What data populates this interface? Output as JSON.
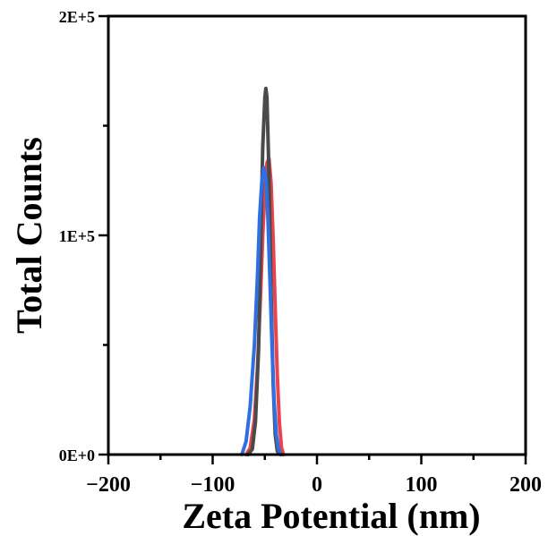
{
  "chart_data": {
    "type": "line",
    "title": "",
    "xlabel": "Zeta Potential (nm)",
    "ylabel": "Total Counts",
    "xlim": [
      -200,
      200
    ],
    "ylim": [
      0,
      200000
    ],
    "x_ticks": [
      -200,
      -100,
      0,
      100,
      200
    ],
    "x_tick_labels": [
      "−200",
      "−100",
      "0",
      "100",
      "200"
    ],
    "y_ticks": [
      0,
      100000,
      200000
    ],
    "y_tick_labels": [
      "0E+0",
      "1E+5",
      "2E+5"
    ],
    "grid": false,
    "legend": "none",
    "series": [
      {
        "color": "#e8434f",
        "x": [
          -68,
          -64,
          -60,
          -57,
          -54,
          -52,
          -50,
          -48,
          -46,
          -44,
          -42,
          -40,
          -38,
          -36,
          -34,
          -32
        ],
        "y": [
          0,
          3000,
          16000,
          40000,
          74000,
          100000,
          120000,
          133000,
          135000,
          124000,
          98000,
          66000,
          36000,
          14000,
          3000,
          0
        ]
      },
      {
        "color": "#4a4a4a",
        "x": [
          -66,
          -62,
          -59,
          -56,
          -54,
          -52,
          -50,
          -49,
          -48,
          -46,
          -44,
          -42,
          -40,
          -38,
          -35
        ],
        "y": [
          0,
          2500,
          15000,
          48000,
          95000,
          140000,
          163000,
          167000,
          163000,
          128000,
          75000,
          32000,
          9000,
          1500,
          0
        ]
      },
      {
        "color": "#2f6fe0",
        "x": [
          -72,
          -68,
          -64,
          -60,
          -57,
          -55,
          -53,
          -51,
          -49,
          -47,
          -45,
          -43,
          -41,
          -39,
          -37,
          -35,
          -33
        ],
        "y": [
          0,
          6000,
          22000,
          50000,
          82000,
          108000,
          124000,
          131000,
          126000,
          108000,
          78000,
          48000,
          24000,
          9000,
          2500,
          500,
          0
        ]
      }
    ]
  }
}
